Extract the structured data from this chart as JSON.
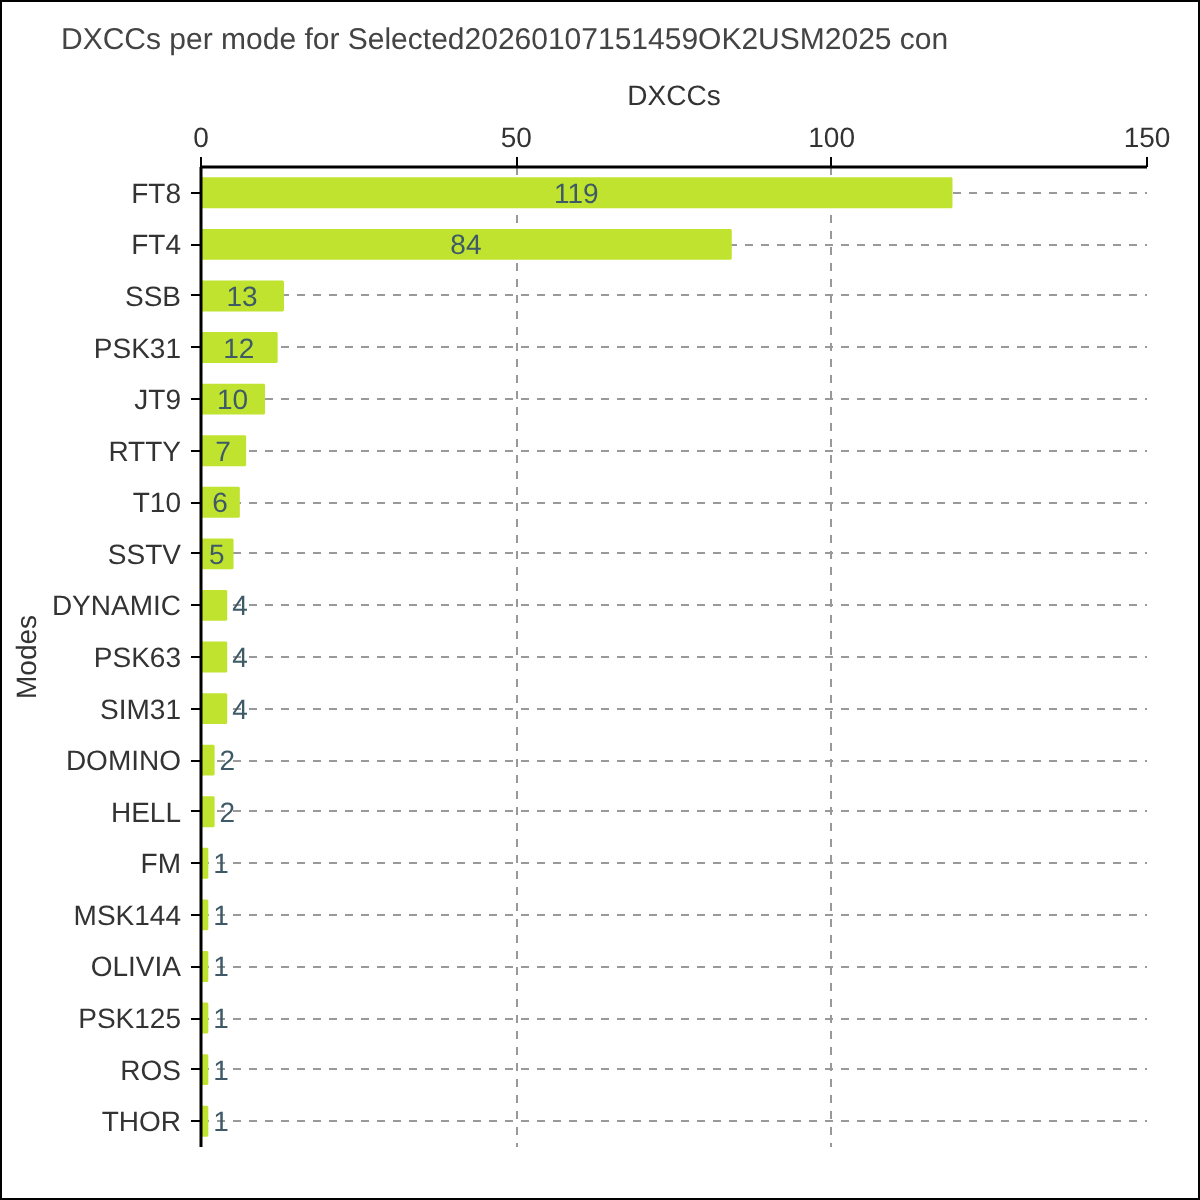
{
  "chart_data": {
    "type": "bar",
    "orientation": "horizontal",
    "title": "DXCCs per mode for Selected20260107151459OK2USM2025 con",
    "xlabel": "DXCCs",
    "ylabel": "Modes",
    "categories": [
      "FT8",
      "FT4",
      "SSB",
      "PSK31",
      "JT9",
      "RTTY",
      "T10",
      "SSTV",
      "DYNAMIC",
      "PSK63",
      "SIM31",
      "DOMINO",
      "HELL",
      "FM",
      "MSK144",
      "OLIVIA",
      "PSK125",
      "ROS",
      "THOR"
    ],
    "values": [
      119,
      84,
      13,
      12,
      10,
      7,
      6,
      5,
      4,
      4,
      4,
      2,
      2,
      1,
      1,
      1,
      1,
      1,
      1
    ],
    "color": "#c0e330",
    "xlim": [
      0,
      150
    ],
    "xticks": [
      0,
      50,
      100,
      150
    ],
    "grid": true,
    "data_labels": true
  }
}
